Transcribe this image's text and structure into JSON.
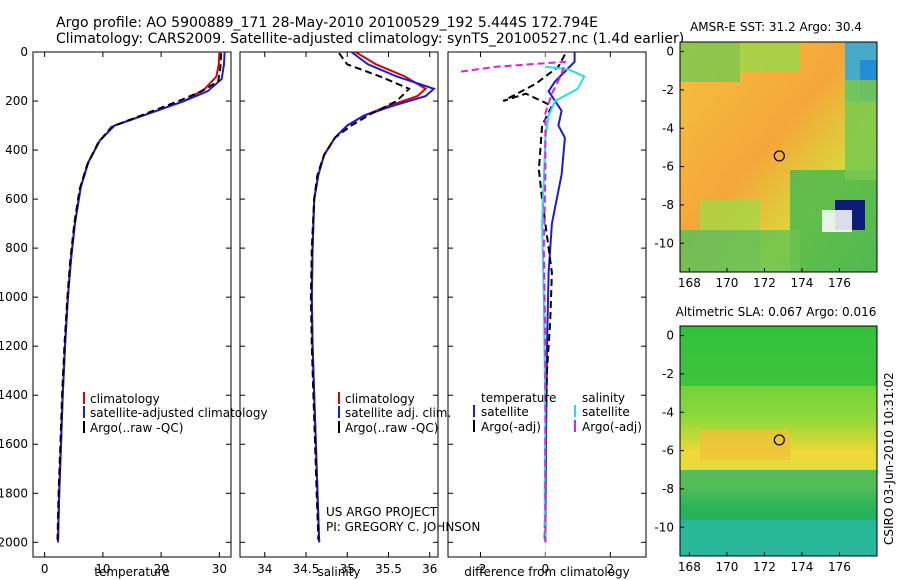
{
  "title": {
    "line1": "Argo profile: AO 5900889_171 28-May-2010 20100529_192 5.444S 172.794E",
    "line2": "Climatology: CARS2009. Satellite-adjusted climatology: synTS_20100527.nc (1.4d earlier)"
  },
  "credit": {
    "line1": "US ARGO PROJECT",
    "line2": "PI: GREGORY C. JOHNSON"
  },
  "timestamp": "CSIRO 03-Jun-2010 10:31:02",
  "colors": {
    "clim": "#dd0000",
    "sat": "#1a1ad8",
    "argo": "#000000",
    "sal_sat": "#22e0e8",
    "sal_argo": "#e020e0"
  },
  "chart_data": [
    {
      "type": "line",
      "id": "temperature",
      "xlabel": "temperature",
      "ylabel": "",
      "xlim": [
        -2,
        32
      ],
      "ylim": [
        2060,
        0
      ],
      "xticks": [
        0,
        10,
        20,
        30
      ],
      "yticks": [
        0,
        200,
        400,
        600,
        800,
        1000,
        1200,
        1400,
        1600,
        1800,
        2000
      ],
      "legend": [
        "climatology",
        "satellite-adjusted climatology",
        "Argo(..raw -QC)"
      ],
      "series": [
        {
          "name": "climatology",
          "color": "clim",
          "dash": false,
          "points": [
            [
              30.0,
              0
            ],
            [
              29.9,
              50
            ],
            [
              29.5,
              100
            ],
            [
              27.5,
              150
            ],
            [
              24,
              200
            ],
            [
              18,
              250
            ],
            [
              12,
              300
            ],
            [
              9.5,
              360
            ],
            [
              7.5,
              450
            ],
            [
              6.2,
              550
            ],
            [
              5.2,
              700
            ],
            [
              4.5,
              850
            ],
            [
              4.0,
              1000
            ],
            [
              3.5,
              1200
            ],
            [
              3.1,
              1400
            ],
            [
              2.8,
              1600
            ],
            [
              2.5,
              1800
            ],
            [
              2.3,
              2000
            ]
          ]
        },
        {
          "name": "satellite-adjusted climatology",
          "color": "sat",
          "dash": false,
          "points": [
            [
              30.9,
              0
            ],
            [
              30.8,
              50
            ],
            [
              30.4,
              110
            ],
            [
              28,
              160
            ],
            [
              24,
              200
            ],
            [
              18,
              250
            ],
            [
              12,
              300
            ],
            [
              9.5,
              360
            ],
            [
              7.5,
              450
            ],
            [
              6.2,
              550
            ],
            [
              5.2,
              700
            ],
            [
              4.5,
              850
            ],
            [
              4.0,
              1000
            ],
            [
              3.5,
              1200
            ],
            [
              3.1,
              1400
            ],
            [
              2.8,
              1600
            ],
            [
              2.5,
              1800
            ],
            [
              2.3,
              2000
            ]
          ]
        },
        {
          "name": "Argo(..raw -QC)",
          "color": "argo",
          "dash": true,
          "points": [
            [
              30.3,
              5
            ],
            [
              30.2,
              60
            ],
            [
              29.8,
              120
            ],
            [
              27,
              160
            ],
            [
              23,
              200
            ],
            [
              17,
              255
            ],
            [
              11.5,
              305
            ],
            [
              9.2,
              370
            ],
            [
              7.3,
              460
            ],
            [
              6,
              560
            ],
            [
              5.1,
              700
            ],
            [
              4.4,
              850
            ],
            [
              3.9,
              1000
            ],
            [
              3.4,
              1200
            ],
            [
              3.0,
              1400
            ],
            [
              2.7,
              1600
            ],
            [
              2.4,
              1800
            ],
            [
              2.2,
              1990
            ]
          ]
        }
      ]
    },
    {
      "type": "line",
      "id": "salinity",
      "xlabel": "salinity",
      "xlim": [
        33.7,
        36.1
      ],
      "ylim": [
        2060,
        0
      ],
      "xticks": [
        34,
        34.5,
        35,
        35.5,
        36
      ],
      "yticks": [],
      "legend": [
        "climatology",
        "satellite adj. clim.",
        "Argo(..raw -QC)"
      ],
      "series": [
        {
          "name": "climatology",
          "color": "clim",
          "dash": false,
          "points": [
            [
              35.1,
              0
            ],
            [
              35.35,
              50
            ],
            [
              35.7,
              100
            ],
            [
              35.95,
              150
            ],
            [
              35.85,
              180
            ],
            [
              35.5,
              220
            ],
            [
              35.2,
              260
            ],
            [
              35.0,
              300
            ],
            [
              34.85,
              350
            ],
            [
              34.72,
              420
            ],
            [
              34.65,
              500
            ],
            [
              34.6,
              600
            ],
            [
              34.58,
              800
            ],
            [
              34.57,
              1000
            ],
            [
              34.58,
              1200
            ],
            [
              34.6,
              1400
            ],
            [
              34.62,
              1600
            ],
            [
              34.64,
              1800
            ],
            [
              34.66,
              2000
            ]
          ]
        },
        {
          "name": "satellite adj. clim.",
          "color": "sat",
          "dash": false,
          "points": [
            [
              35.05,
              0
            ],
            [
              35.25,
              50
            ],
            [
              35.6,
              100
            ],
            [
              36.05,
              150
            ],
            [
              35.95,
              180
            ],
            [
              35.55,
              220
            ],
            [
              35.2,
              260
            ],
            [
              35.0,
              300
            ],
            [
              34.85,
              350
            ],
            [
              34.72,
              420
            ],
            [
              34.65,
              500
            ],
            [
              34.6,
              600
            ],
            [
              34.58,
              800
            ],
            [
              34.57,
              1000
            ],
            [
              34.58,
              1200
            ],
            [
              34.6,
              1400
            ],
            [
              34.62,
              1600
            ],
            [
              34.64,
              1800
            ],
            [
              34.66,
              2000
            ]
          ]
        },
        {
          "name": "Argo(..raw -QC)",
          "color": "argo",
          "dash": true,
          "points": [
            [
              34.9,
              5
            ],
            [
              35.0,
              50
            ],
            [
              35.4,
              100
            ],
            [
              35.75,
              150
            ],
            [
              35.6,
              200
            ],
            [
              35.3,
              250
            ],
            [
              35.05,
              300
            ],
            [
              34.85,
              350
            ],
            [
              34.72,
              420
            ],
            [
              34.64,
              500
            ],
            [
              34.6,
              600
            ],
            [
              34.57,
              800
            ],
            [
              34.56,
              1000
            ],
            [
              34.57,
              1200
            ],
            [
              34.59,
              1400
            ],
            [
              34.61,
              1600
            ],
            [
              34.63,
              1800
            ],
            [
              34.65,
              1990
            ]
          ]
        }
      ]
    },
    {
      "type": "line",
      "id": "difference",
      "xlabel": "difference from climatology",
      "xlim": [
        -3,
        3.1
      ],
      "ylim": [
        2060,
        0
      ],
      "xticks": [
        -2,
        0,
        2
      ],
      "yticks": [],
      "legend_titles": [
        "temperature",
        "salinity"
      ],
      "legend": [
        "satellite",
        "Argo(-adj)",
        "satellite",
        "Argo(-adj)"
      ],
      "series": [
        {
          "name": "temperature satellite",
          "color": "sat",
          "dash": false,
          "points": [
            [
              0.9,
              0
            ],
            [
              0.9,
              40
            ],
            [
              0.6,
              80
            ],
            [
              0.3,
              120
            ],
            [
              0.1,
              160
            ],
            [
              0.3,
              200
            ],
            [
              0.5,
              240
            ],
            [
              0.4,
              300
            ],
            [
              0.6,
              350
            ],
            [
              0.5,
              500
            ],
            [
              0.2,
              700
            ],
            [
              0.1,
              900
            ],
            [
              0.05,
              1200
            ],
            [
              0.02,
              1600
            ],
            [
              0.0,
              2000
            ]
          ]
        },
        {
          "name": "temperature Argo(-adj)",
          "color": "argo",
          "dash": true,
          "points": [
            [
              0.6,
              10
            ],
            [
              0.4,
              60
            ],
            [
              -0.3,
              130
            ],
            [
              -1.3,
              200
            ],
            [
              -0.6,
              170
            ],
            [
              0.2,
              220
            ],
            [
              -0.1,
              300
            ],
            [
              -0.2,
              480
            ],
            [
              -0.1,
              600
            ],
            [
              0.1,
              800
            ],
            [
              0.2,
              900
            ],
            [
              0.15,
              1100
            ],
            [
              0.05,
              1300
            ],
            [
              0.0,
              1600
            ],
            [
              -0.02,
              2000
            ]
          ]
        },
        {
          "name": "salinity satellite",
          "color": "sal_sat",
          "dash": false,
          "points": [
            [
              0.0,
              60
            ],
            [
              0.7,
              70
            ],
            [
              1.2,
              100
            ],
            [
              1.0,
              150
            ],
            [
              0.3,
              200
            ],
            [
              0.1,
              260
            ],
            [
              0.0,
              350
            ],
            [
              -0.1,
              700
            ],
            [
              -0.05,
              1000
            ],
            [
              0.0,
              1500
            ],
            [
              -0.02,
              1800
            ],
            [
              0.0,
              2000
            ]
          ]
        },
        {
          "name": "salinity Argo(-adj)",
          "color": "sal_argo",
          "dash": true,
          "points": [
            [
              -2.6,
              80
            ],
            [
              -1.5,
              60
            ],
            [
              0.6,
              40
            ],
            [
              0.5,
              90
            ],
            [
              0.2,
              170
            ],
            [
              0.0,
              250
            ],
            [
              0.0,
              500
            ],
            [
              -0.05,
              800
            ],
            [
              0.0,
              1200
            ],
            [
              0.0,
              2000
            ]
          ]
        }
      ]
    },
    {
      "type": "heatmap",
      "id": "sst_map",
      "title": "AMSR-E SST: 31.2 Argo: 30.4",
      "xlim": [
        167.5,
        178
      ],
      "ylim": [
        -11.5,
        0.5
      ],
      "xticks": [
        168,
        170,
        172,
        174,
        176
      ],
      "yticks": [
        0,
        -2,
        -4,
        -6,
        -8,
        -10
      ],
      "argo_location": [
        172.794,
        -5.444
      ]
    },
    {
      "type": "heatmap",
      "id": "sla_map",
      "title": "Altimetric SLA: 0.067 Argo: 0.016",
      "xlim": [
        167.5,
        178
      ],
      "ylim": [
        -11.5,
        0.5
      ],
      "xticks": [
        168,
        170,
        172,
        174,
        176
      ],
      "yticks": [
        0,
        -2,
        -4,
        -6,
        -8,
        -10
      ],
      "argo_location": [
        172.794,
        -5.444
      ]
    }
  ]
}
